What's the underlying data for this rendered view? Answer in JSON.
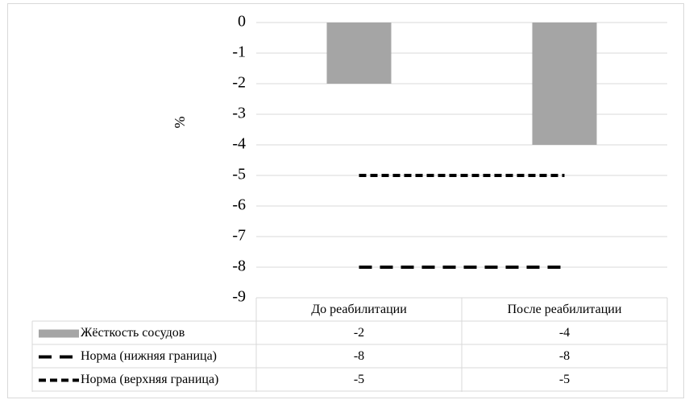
{
  "chart_data": {
    "type": "bar",
    "y_label": "%",
    "categories": [
      "До реабилитации",
      "После реабилитации"
    ],
    "series": [
      {
        "name": "Жёсткость сосудов",
        "type": "bar",
        "color": "#a5a5a5",
        "values": [
          -2,
          -4
        ]
      },
      {
        "name": "Норма (нижняя граница)",
        "type": "line",
        "dash": "long",
        "color": "#000000",
        "values": [
          -8,
          -8
        ]
      },
      {
        "name": "Норма (верхняя граница)",
        "type": "line",
        "dash": "short",
        "color": "#000000",
        "values": [
          -5,
          -5
        ]
      }
    ],
    "ylim": [
      -9,
      0
    ],
    "yticks": [
      0,
      -1,
      -2,
      -3,
      -4,
      -5,
      -6,
      -7,
      -8,
      -9
    ],
    "grid": true,
    "data_table": true
  }
}
